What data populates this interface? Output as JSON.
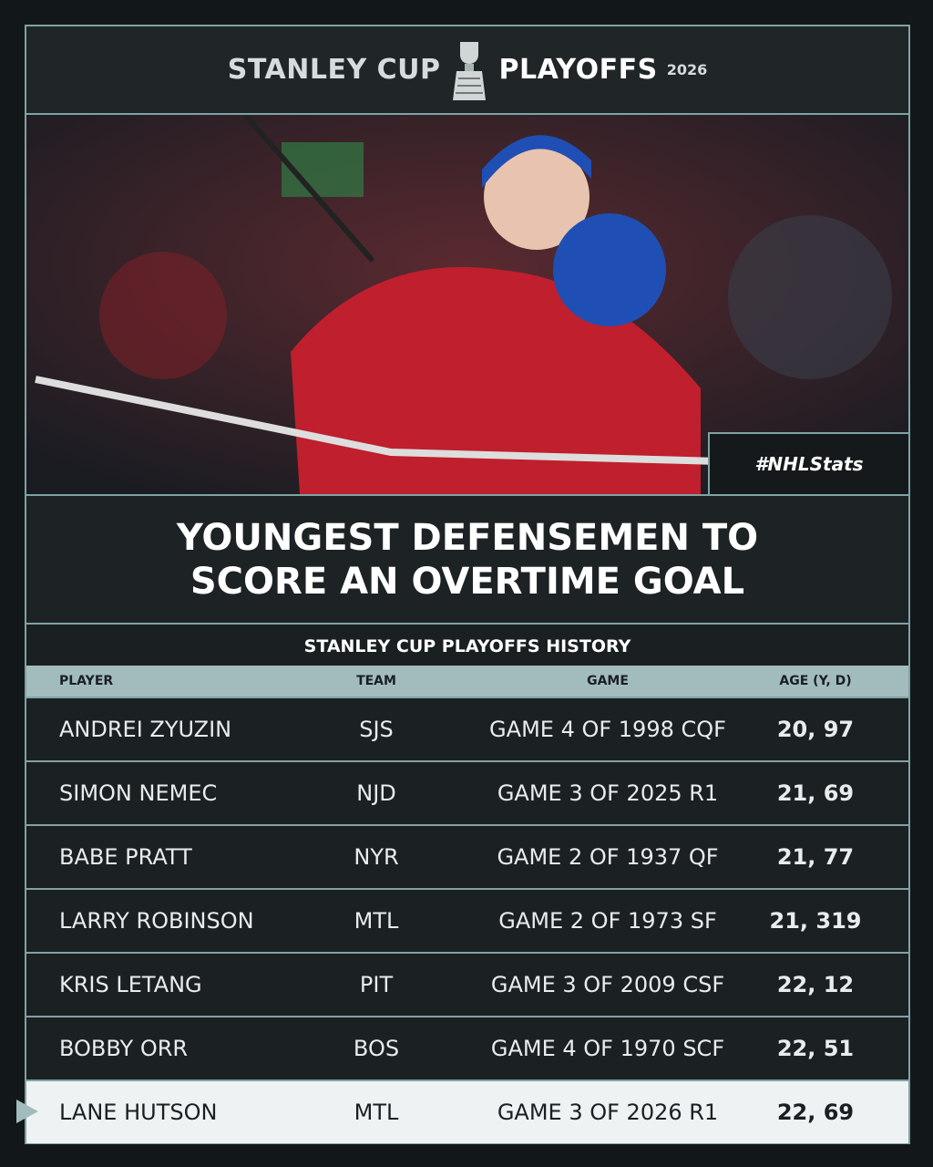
{
  "header": {
    "brand_left": "STANLEY CUP",
    "brand_right": "PLAYOFFS",
    "year": "2026"
  },
  "photo": {
    "tag": "#NHLStats"
  },
  "title": "YOUNGEST DEFENSEMEN TO SCORE AN OVERTIME GOAL",
  "subtitle": "STANLEY CUP PLAYOFFS HISTORY",
  "table": {
    "columns": [
      "PLAYER",
      "TEAM",
      "GAME",
      "AGE (Y, D)"
    ],
    "rows": [
      [
        "ANDREI ZYUZIN",
        "SJS",
        "GAME 4 OF 1998 CQF",
        "20, 97"
      ],
      [
        "SIMON NEMEC",
        "NJD",
        "GAME 3 OF 2025 R1",
        "21, 69"
      ],
      [
        "BABE PRATT",
        "NYR",
        "GAME 2 OF 1937 QF",
        "21, 77"
      ],
      [
        "LARRY ROBINSON",
        "MTL",
        "GAME 2 OF 1973 SF",
        "21, 319"
      ],
      [
        "KRIS LETANG",
        "PIT",
        "GAME 3 OF 2009 CSF",
        "22, 12"
      ],
      [
        "BOBBY ORR",
        "BOS",
        "GAME 4 OF 1970 SCF",
        "22, 51"
      ],
      [
        "LANE HUTSON",
        "MTL",
        "GAME 3 OF 2026 R1",
        "22, 69"
      ]
    ],
    "highlight_row": 6
  }
}
